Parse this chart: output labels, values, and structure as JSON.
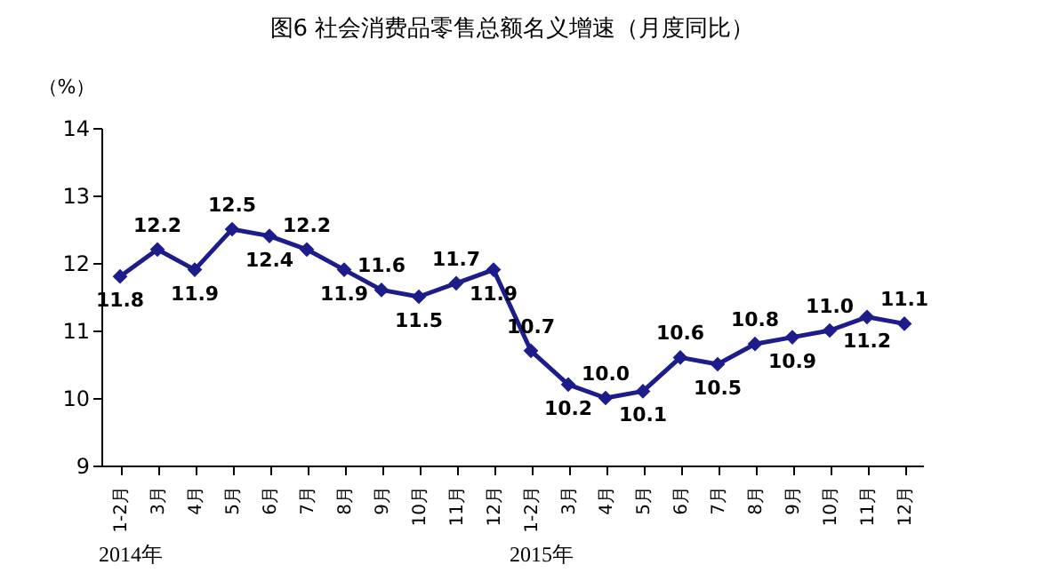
{
  "chart_data": {
    "type": "line",
    "title": "图6  社会消费品零售总额名义增速（月度同比）",
    "ylabel": "（%）",
    "categories": [
      "1-2月",
      "3月",
      "4月",
      "5月",
      "6月",
      "7月",
      "8月",
      "9月",
      "10月",
      "11月",
      "12月",
      "1-2月",
      "3月",
      "4月",
      "5月",
      "6月",
      "7月",
      "8月",
      "9月",
      "10月",
      "11月",
      "12月"
    ],
    "series": [
      {
        "color": "#1c1c8a",
        "values": [
          11.8,
          12.2,
          11.9,
          12.5,
          12.4,
          12.2,
          11.9,
          11.6,
          11.5,
          11.7,
          11.9,
          10.7,
          10.2,
          10.0,
          10.1,
          10.6,
          10.5,
          10.8,
          10.9,
          11.0,
          11.2,
          11.1
        ]
      }
    ],
    "ylim": [
      9,
      14
    ],
    "yticks": [
      9,
      10,
      11,
      12,
      13,
      14
    ],
    "grid": false,
    "legend": false,
    "marker": "diamond",
    "line_style": "solid",
    "value_labels": [
      "11.8",
      "12.2",
      "11.9",
      "12.5",
      "12.4",
      "12.2",
      "11.9",
      "11.6",
      "11.5",
      "11.7",
      "11.9",
      "10.7",
      "10.2",
      "10.0",
      "10.1",
      "10.6",
      "10.5",
      "10.8",
      "10.9",
      "11.0",
      "11.2",
      "11.1"
    ],
    "annotations": [
      "2014年",
      "2015年"
    ]
  }
}
